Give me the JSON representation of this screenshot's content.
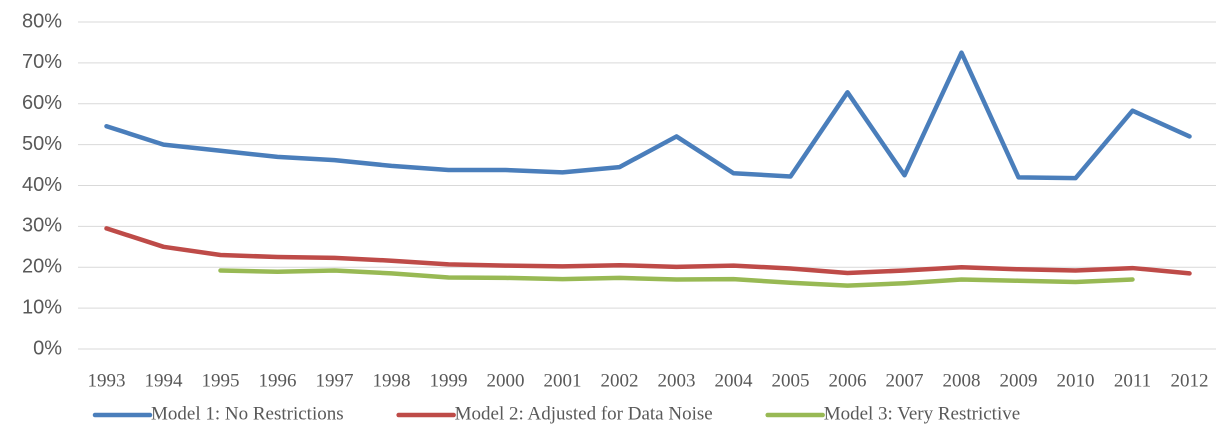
{
  "chart_data": {
    "type": "line",
    "categories": [
      "1993",
      "1994",
      "1995",
      "1996",
      "1997",
      "1998",
      "1999",
      "2000",
      "2001",
      "2002",
      "2003",
      "2004",
      "2005",
      "2006",
      "2007",
      "2008",
      "2009",
      "2010",
      "2011",
      "2012"
    ],
    "series": [
      {
        "name": "Model 1: No Restrictions",
        "color": "#4a7ebb",
        "values": [
          54.5,
          50,
          48.5,
          47,
          46.2,
          44.8,
          43.8,
          43.8,
          43.2,
          44.5,
          52,
          43,
          42.2,
          62.8,
          42.5,
          72.5,
          42,
          41.8,
          58.3,
          52
        ]
      },
      {
        "name": "Model 2: Adjusted for Data Noise",
        "color": "#be4b48",
        "values": [
          29.5,
          25,
          23,
          22.5,
          22.3,
          21.6,
          20.7,
          20.4,
          20.2,
          20.5,
          20.1,
          20.4,
          19.7,
          18.6,
          19.2,
          20,
          19.5,
          19.2,
          19.8,
          18.5
        ]
      },
      {
        "name": "Model 3: Very Restrictive",
        "color": "#98b954",
        "values": [
          null,
          null,
          19.2,
          18.9,
          19.2,
          18.5,
          17.5,
          17.4,
          17.1,
          17.4,
          17,
          17.1,
          16.2,
          15.5,
          16.1,
          17,
          16.7,
          16.4,
          17,
          null
        ]
      }
    ],
    "ylim": [
      0,
      80
    ],
    "yticks": [
      {
        "value": 0,
        "label": "0%"
      },
      {
        "value": 10,
        "label": "10%"
      },
      {
        "value": 20,
        "label": "20%"
      },
      {
        "value": 30,
        "label": "30%"
      },
      {
        "value": 40,
        "label": "40%"
      },
      {
        "value": 50,
        "label": "50%"
      },
      {
        "value": 60,
        "label": "60%"
      },
      {
        "value": 70,
        "label": "70%"
      },
      {
        "value": 80,
        "label": "80%"
      }
    ],
    "grid": true,
    "legend": "bottom"
  }
}
